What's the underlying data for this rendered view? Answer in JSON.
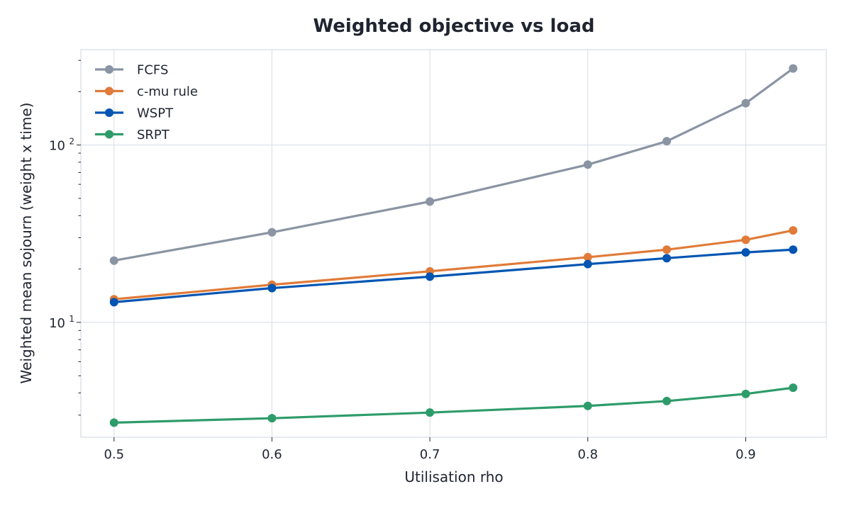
{
  "chart_data": {
    "type": "line",
    "title": "Weighted objective vs load",
    "xlabel": "Utilisation rho",
    "ylabel": "Weighted mean sojourn (weight x time)",
    "yscale": "log",
    "xlim": [
      0.479,
      0.951
    ],
    "ylim": [
      2.25,
      345
    ],
    "x_ticks": [
      "0.5",
      "0.6",
      "0.7",
      "0.8",
      "0.9"
    ],
    "y_ticks": [
      {
        "base": "10",
        "exp": "1",
        "value": 10
      },
      {
        "base": "10",
        "exp": "2",
        "value": 100
      }
    ],
    "x": [
      0.5,
      0.6,
      0.7,
      0.8,
      0.85,
      0.9,
      0.93
    ],
    "grid": true,
    "legend_position": "top-left",
    "series": [
      {
        "name": "FCFS",
        "color": "#8a94a3",
        "values": [
          22.3,
          32.2,
          48.0,
          77.5,
          105.0,
          172.0,
          270.0
        ]
      },
      {
        "name": "c-mu rule",
        "color": "#e07b39",
        "values": [
          13.5,
          16.3,
          19.4,
          23.3,
          25.7,
          29.2,
          33.0
        ]
      },
      {
        "name": "WSPT",
        "color": "#0055b3",
        "values": [
          13.0,
          15.6,
          18.1,
          21.3,
          23.0,
          24.8,
          25.7
        ]
      },
      {
        "name": "SRPT",
        "color": "#2e9c6a",
        "values": [
          2.72,
          2.88,
          3.1,
          3.38,
          3.6,
          3.95,
          4.28
        ]
      }
    ]
  }
}
